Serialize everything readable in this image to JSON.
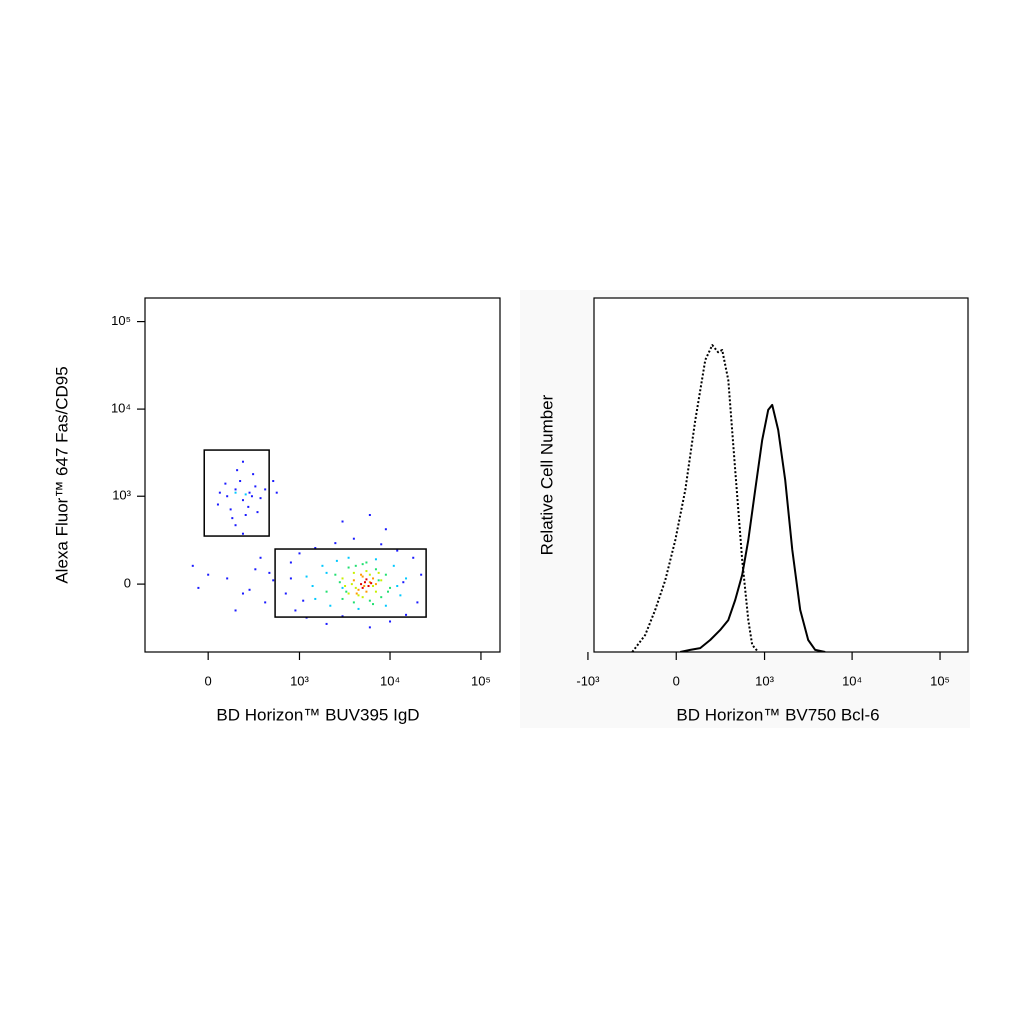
{
  "chart_data": [
    {
      "type": "scatter",
      "xlabel": "BD Horizon™ BUV395 IgD",
      "ylabel": "Alexa Fluor™ 647 Fas/CD95",
      "xscale": "biexponential",
      "yscale": "biexponential",
      "xlim": [
        -475,
        162000
      ],
      "ylim": [
        -580,
        186000
      ],
      "xticks": [
        0,
        {
          "value": 1000,
          "label": "10³"
        },
        {
          "value": 10000,
          "label": "10⁴"
        },
        {
          "value": 100000,
          "label": "10⁵"
        }
      ],
      "yticks": [
        0,
        {
          "value": 1000,
          "label": "10³"
        },
        {
          "value": 10000,
          "label": "10⁴"
        },
        {
          "value": 100000,
          "label": "10⁵"
        }
      ],
      "gates": [
        {
          "x": [
            -20,
            447
          ],
          "y": [
            326,
            3400
          ]
        },
        {
          "x": [
            526,
            24940
          ],
          "y": [
            -196,
            212
          ]
        }
      ],
      "series": [
        {
          "color": "#1a1aff",
          "x": [
            100,
            150,
            200,
            250,
            50,
            300,
            180,
            120,
            220,
            280,
            60,
            350,
            160,
            240,
            90,
            320,
            200,
            400,
            130,
            270,
            500,
            550,
            150,
            200,
            0,
            -50,
            100,
            200,
            300,
            400,
            500,
            150,
            350,
            250,
            -80,
            450,
            700,
            800,
            900,
            1000,
            1200,
            1500,
            2000,
            2500,
            3000,
            4000,
            6000,
            8000,
            10000,
            12000,
            15000,
            18000,
            20000,
            22000,
            800,
            1100,
            14000,
            6000,
            3000,
            9000
          ],
          "values": [
            1000,
            1200,
            900,
            1100,
            800,
            1300,
            1500,
            700,
            600,
            1800,
            1100,
            950,
            2000,
            750,
            1400,
            650,
            2500,
            1200,
            550,
            1000,
            1500,
            1100,
            450,
            350,
            50,
            -20,
            30,
            -50,
            80,
            -100,
            20,
            -150,
            150,
            -30,
            100,
            60,
            -50,
            120,
            -150,
            180,
            -200,
            220,
            -250,
            260,
            -190,
            300,
            -280,
            250,
            -230,
            200,
            -180,
            150,
            -100,
            50,
            30,
            -90,
            10,
            600,
            500,
            400
          ]
        },
        {
          "color": "#00c8ff",
          "x": [
            1200,
            1500,
            1800,
            2200,
            2600,
            3000,
            3500,
            4500,
            7000,
            9000,
            11000,
            13000,
            15000,
            1400,
            2000,
            12000,
            150,
            220
          ],
          "values": [
            40,
            -80,
            100,
            -120,
            130,
            -20,
            150,
            -140,
            140,
            -120,
            100,
            -60,
            30,
            -10,
            60,
            -10,
            1100,
            1050
          ]
        },
        {
          "color": "#20e070",
          "x": [
            2000,
            2500,
            3000,
            3500,
            4000,
            5000,
            6000,
            7000,
            8000,
            9000,
            10000,
            2800,
            3300,
            7500,
            9500,
            4200,
            6500,
            5500
          ],
          "values": [
            -40,
            50,
            -80,
            90,
            -100,
            110,
            -90,
            80,
            -70,
            50,
            -20,
            10,
            -40,
            20,
            -40,
            100,
            -110,
            120
          ]
        },
        {
          "color": "#c8f000",
          "x": [
            3000,
            3500,
            4000,
            4500,
            6000,
            7000,
            8000,
            5000,
            3800,
            6500,
            7500,
            4200,
            5500,
            3200
          ],
          "values": [
            30,
            -50,
            60,
            -60,
            50,
            -40,
            20,
            -70,
            0,
            -10,
            60,
            -20,
            70,
            -10
          ]
        },
        {
          "color": "#ff9a00",
          "x": [
            4000,
            4500,
            5000,
            5500,
            6000,
            6500,
            5200,
            4800,
            7000,
            4300
          ],
          "values": [
            20,
            -30,
            40,
            -40,
            10,
            30,
            -10,
            50,
            0,
            -50
          ]
        },
        {
          "color": "#e00000",
          "x": [
            4800,
            5300,
            5800,
            5000,
            5500,
            6200
          ],
          "values": [
            0,
            10,
            -10,
            -20,
            25,
            5
          ]
        }
      ]
    },
    {
      "type": "histogram-overlay",
      "xlabel": "BD Horizon™ BV750 Bcl-6",
      "ylabel": "Relative Cell Number",
      "xscale": "biexponential",
      "xlim": [
        -850,
        208000
      ],
      "ylim": [
        0,
        100
      ],
      "xticks": [
        {
          "value": -1000,
          "label": "-10³"
        },
        0,
        {
          "value": 1000,
          "label": "10³"
        },
        {
          "value": 10000,
          "label": "10⁴"
        },
        {
          "value": 100000,
          "label": "10⁵"
        }
      ],
      "series": [
        {
          "color": "#000000",
          "dash": "dotted",
          "x": [
            -284,
            -181,
            -116,
            -58,
            -5,
            48,
            104,
            167,
            218,
            266,
            303,
            365,
            447,
            545,
            644,
            718,
            844
          ],
          "values": [
            0,
            4.8,
            11.9,
            20.3,
            31.6,
            45.8,
            65.5,
            82.5,
            86.7,
            84.7,
            85.3,
            76.8,
            51.4,
            26.0,
            9.0,
            2.0,
            0
          ]
        },
        {
          "color": "#000000",
          "dash": "solid",
          "x": [
            21,
            75,
            134,
            202,
            284,
            365,
            447,
            545,
            644,
            778,
            938,
            1102,
            1226,
            1438,
            1730,
            2084,
            2566,
            3166,
            3800,
            4940
          ],
          "values": [
            0,
            0.6,
            1.1,
            3.4,
            6.2,
            9.0,
            14.7,
            21.8,
            31.6,
            45.8,
            59.9,
            68.4,
            69.8,
            62.7,
            48.6,
            28.8,
            11.9,
            3.4,
            0.6,
            0
          ]
        }
      ]
    }
  ]
}
